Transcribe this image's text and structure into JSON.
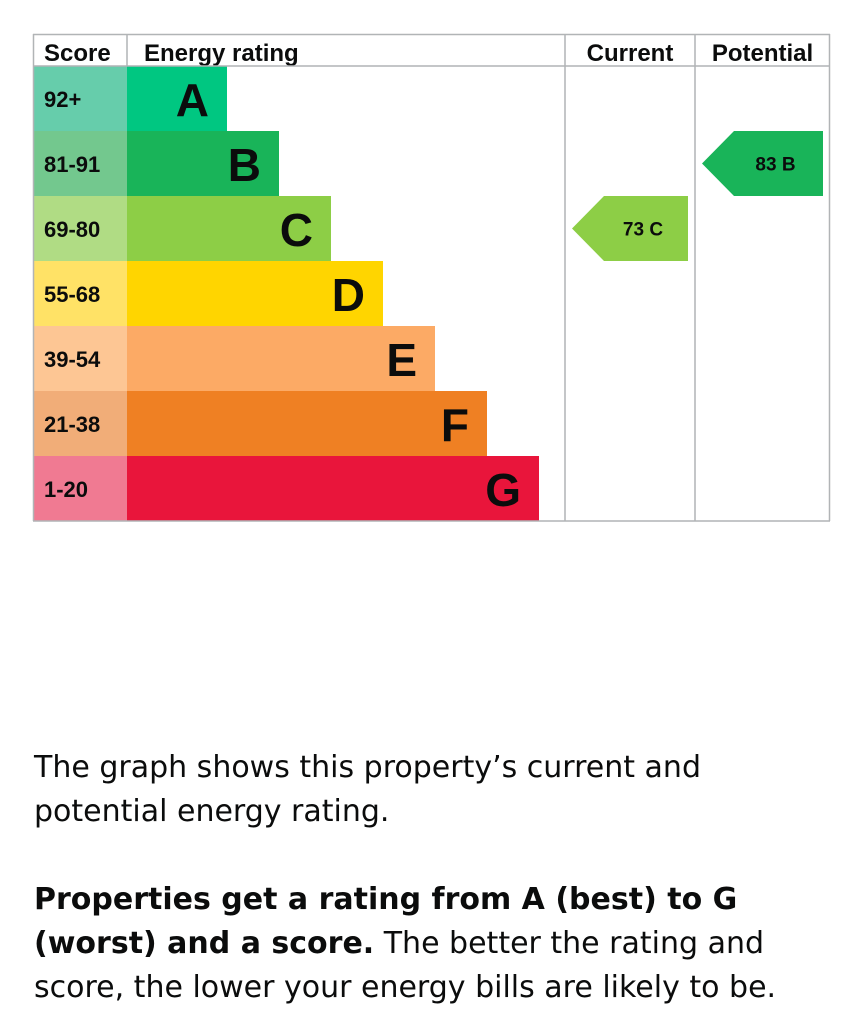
{
  "chart_data": {
    "type": "bar",
    "headers": {
      "score": "Score",
      "rating": "Energy rating",
      "current": "Current",
      "potential": "Potential"
    },
    "bands": [
      {
        "letter": "A",
        "range": "92+",
        "color": "#00c781",
        "score_color": "#66cdab"
      },
      {
        "letter": "B",
        "range": "81-91",
        "color": "#19b459",
        "score_color": "#73c88e"
      },
      {
        "letter": "C",
        "range": "69-80",
        "color": "#8dce46",
        "score_color": "#b0dc84"
      },
      {
        "letter": "D",
        "range": "55-68",
        "color": "#ffd500",
        "score_color": "#ffe266"
      },
      {
        "letter": "E",
        "range": "39-54",
        "color": "#fcaa65",
        "score_color": "#fdc694"
      },
      {
        "letter": "F",
        "range": "21-38",
        "color": "#ef8023",
        "score_color": "#f1ad78"
      },
      {
        "letter": "G",
        "range": "1-20",
        "color": "#e9153b",
        "score_color": "#f07a92"
      }
    ],
    "current": {
      "score": 73,
      "letter": "C",
      "label": "73 C",
      "color": "#8dce46"
    },
    "potential": {
      "score": 83,
      "letter": "B",
      "label": "83 B",
      "color": "#19b459"
    }
  },
  "description": {
    "paragraph1": "The graph shows this property’s current and potential energy rating.",
    "paragraph2_bold": "Properties get a rating from A (best) to G (worst) and a score.",
    "paragraph2_rest": " The better the rating and score, the lower your energy bills are likely to be."
  }
}
